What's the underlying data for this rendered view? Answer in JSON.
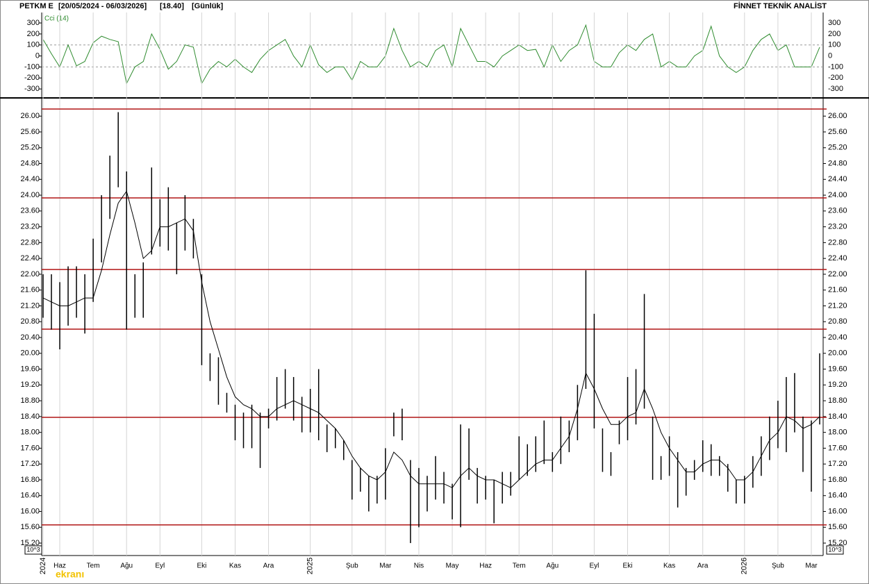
{
  "header": {
    "symbol": "PETKM E",
    "range": "[20/05/2024 - 06/03/2026]",
    "last": "[18.40]",
    "period": "[Günlük]",
    "brand": "FİNNET TEKNİK ANALİST",
    "watermark": "ekranı"
  },
  "chart_data": [
    {
      "type": "line",
      "label": "Cci (14)",
      "color": "#2e8b2e",
      "values": [
        150,
        20,
        -100,
        100,
        -90,
        -50,
        120,
        180,
        150,
        130,
        -250,
        -100,
        -50,
        200,
        60,
        -120,
        -50,
        100,
        80,
        -250,
        -120,
        -50,
        -100,
        -30,
        -100,
        -150,
        -30,
        50,
        100,
        150,
        0,
        -100,
        100,
        -80,
        -150,
        -100,
        -100,
        -220,
        -50,
        -100,
        -100,
        0,
        250,
        50,
        -100,
        -50,
        -100,
        50,
        100,
        -100,
        250,
        100,
        -50,
        -50,
        -100,
        0,
        50,
        100,
        50,
        60,
        -100,
        100,
        -50,
        50,
        100,
        280,
        -50,
        -100,
        -100,
        30,
        100,
        50,
        150,
        200,
        -100,
        -50,
        -100,
        -100,
        0,
        50,
        270,
        0,
        -100,
        -150,
        -100,
        50,
        150,
        200,
        50,
        100,
        -100,
        -100,
        -100,
        80
      ],
      "ylim": [
        -375,
        395
      ],
      "yticks": [
        300,
        200,
        100,
        0,
        -100,
        -200,
        -300
      ],
      "dashed_levels": [
        100,
        -100
      ]
    },
    {
      "type": "ohlc",
      "color": "#000000",
      "ma_color": "#000000",
      "level_color": "#b01515",
      "corner_label": "10^3",
      "categories": [
        "2024",
        null,
        "Haz",
        null,
        null,
        null,
        "Tem",
        null,
        null,
        null,
        "Ağu",
        null,
        null,
        null,
        "Eyl",
        null,
        null,
        null,
        null,
        "Eki",
        null,
        null,
        null,
        "Kas",
        null,
        null,
        null,
        "Ara",
        null,
        null,
        null,
        null,
        "2025",
        null,
        null,
        null,
        null,
        "Şub",
        null,
        null,
        null,
        "Mar",
        null,
        null,
        null,
        "Nis",
        null,
        null,
        null,
        "May",
        null,
        null,
        null,
        "Haz",
        null,
        null,
        null,
        "Tem",
        null,
        null,
        null,
        "Ağu",
        null,
        null,
        null,
        null,
        "Eyl",
        null,
        null,
        null,
        "Eki",
        null,
        null,
        null,
        null,
        "Kas",
        null,
        null,
        null,
        "Ara",
        null,
        null,
        null,
        null,
        "2026",
        null,
        null,
        null,
        "Şub",
        null,
        null,
        null,
        "Mar",
        null
      ],
      "high": [
        22.0,
        22.0,
        21.8,
        22.2,
        22.2,
        22.0,
        22.9,
        24.0,
        25.0,
        26.1,
        24.6,
        22.0,
        22.3,
        24.7,
        23.9,
        24.2,
        23.3,
        24.0,
        23.4,
        22.0,
        20.0,
        19.9,
        19.0,
        18.7,
        18.5,
        18.7,
        18.5,
        18.6,
        19.4,
        19.6,
        19.4,
        18.9,
        19.1,
        19.6,
        18.2,
        18.1,
        17.8,
        17.3,
        17.1,
        16.9,
        16.9,
        17.6,
        18.5,
        18.6,
        17.3,
        17.1,
        16.9,
        17.4,
        17.0,
        16.7,
        18.2,
        18.1,
        17.1,
        16.9,
        16.8,
        17.0,
        17.0,
        17.9,
        17.7,
        17.9,
        18.3,
        17.5,
        18.4,
        18.3,
        19.2,
        22.1,
        21.0,
        18.1,
        17.5,
        18.3,
        19.4,
        19.6,
        21.5,
        18.4,
        17.4,
        17.9,
        17.5,
        17.1,
        17.3,
        17.8,
        17.7,
        17.4,
        17.2,
        16.8,
        16.9,
        17.4,
        17.9,
        18.4,
        18.8,
        19.4,
        19.5,
        18.4,
        18.3,
        20.0
      ],
      "low": [
        20.9,
        20.6,
        20.1,
        20.7,
        20.9,
        20.5,
        21.3,
        22.3,
        23.4,
        24.2,
        20.6,
        20.9,
        20.9,
        22.5,
        22.7,
        22.6,
        22.0,
        22.6,
        22.4,
        19.7,
        19.3,
        18.7,
        18.5,
        17.8,
        17.6,
        17.6,
        17.1,
        18.1,
        18.3,
        18.6,
        18.3,
        18.0,
        18.0,
        17.8,
        17.5,
        17.6,
        17.3,
        16.3,
        16.5,
        16.0,
        16.2,
        16.3,
        17.9,
        17.8,
        15.2,
        15.6,
        16.0,
        16.3,
        16.2,
        15.8,
        15.6,
        16.8,
        16.2,
        16.3,
        15.7,
        16.2,
        16.4,
        16.8,
        16.9,
        17.0,
        17.2,
        17.0,
        17.2,
        17.5,
        17.8,
        19.1,
        18.1,
        17.0,
        16.9,
        17.7,
        17.8,
        18.2,
        18.6,
        16.8,
        16.8,
        16.9,
        16.1,
        16.4,
        16.8,
        17.0,
        16.9,
        16.9,
        16.5,
        16.2,
        16.2,
        16.6,
        16.9,
        17.3,
        17.6,
        17.5,
        18.0,
        17.0,
        16.5,
        18.2
      ],
      "ma": [
        21.4,
        21.3,
        21.2,
        21.2,
        21.3,
        21.4,
        21.4,
        22.1,
        23.0,
        23.8,
        24.1,
        23.3,
        22.4,
        22.6,
        23.2,
        23.2,
        23.3,
        23.4,
        23.1,
        21.8,
        20.8,
        20.1,
        19.4,
        18.9,
        18.7,
        18.6,
        18.4,
        18.4,
        18.6,
        18.7,
        18.8,
        18.7,
        18.6,
        18.5,
        18.3,
        18.1,
        17.8,
        17.4,
        17.1,
        16.9,
        16.8,
        17.0,
        17.5,
        17.3,
        16.9,
        16.7,
        16.7,
        16.7,
        16.7,
        16.6,
        16.9,
        17.1,
        16.9,
        16.8,
        16.8,
        16.7,
        16.6,
        16.8,
        17.0,
        17.2,
        17.3,
        17.3,
        17.6,
        17.9,
        18.6,
        19.5,
        19.1,
        18.6,
        18.2,
        18.2,
        18.4,
        18.5,
        19.1,
        18.6,
        18.0,
        17.6,
        17.3,
        17.0,
        17.0,
        17.2,
        17.3,
        17.3,
        17.1,
        16.8,
        16.8,
        17.0,
        17.4,
        17.8,
        18.0,
        18.4,
        18.3,
        18.1,
        18.2,
        18.4
      ],
      "levels": [
        26.18,
        23.93,
        22.12,
        20.61,
        18.38,
        15.66
      ],
      "ylim": [
        14.92,
        26.39
      ],
      "yticks": [
        {
          "value": 15.2,
          "label": "15.20"
        },
        {
          "value": 15.6,
          "label": "15.60"
        },
        {
          "value": 16.0,
          "label": "16.00"
        },
        {
          "value": 16.4,
          "label": "16.40"
        },
        {
          "value": 16.8,
          "label": "16.80"
        },
        {
          "value": 17.2,
          "label": "17.20"
        },
        {
          "value": 17.6,
          "label": "17.60"
        },
        {
          "value": 18.0,
          "label": "18.00"
        },
        {
          "value": 18.4,
          "label": "18.40"
        },
        {
          "value": 18.8,
          "label": "18.80"
        },
        {
          "value": 19.2,
          "label": "19.20"
        },
        {
          "value": 19.6,
          "label": "19.60"
        },
        {
          "value": 20.0,
          "label": "20.00"
        },
        {
          "value": 20.4,
          "label": "20.40"
        },
        {
          "value": 20.8,
          "label": "20.80"
        },
        {
          "value": 21.2,
          "label": "21.20"
        },
        {
          "value": 21.6,
          "label": "21.60"
        },
        {
          "value": 22.0,
          "label": "22.00"
        },
        {
          "value": 22.4,
          "label": "22.40"
        },
        {
          "value": 22.8,
          "label": "22.80"
        },
        {
          "value": 23.2,
          "label": "23.20"
        },
        {
          "value": 23.6,
          "label": "23.60"
        },
        {
          "value": 24.0,
          "label": "24.00"
        },
        {
          "value": 24.4,
          "label": "24.40"
        },
        {
          "value": 24.8,
          "label": "24.80"
        },
        {
          "value": 25.2,
          "label": "25.20"
        },
        {
          "value": 25.6,
          "label": "25.60"
        },
        {
          "value": 26.0,
          "label": "26.00"
        }
      ]
    }
  ]
}
